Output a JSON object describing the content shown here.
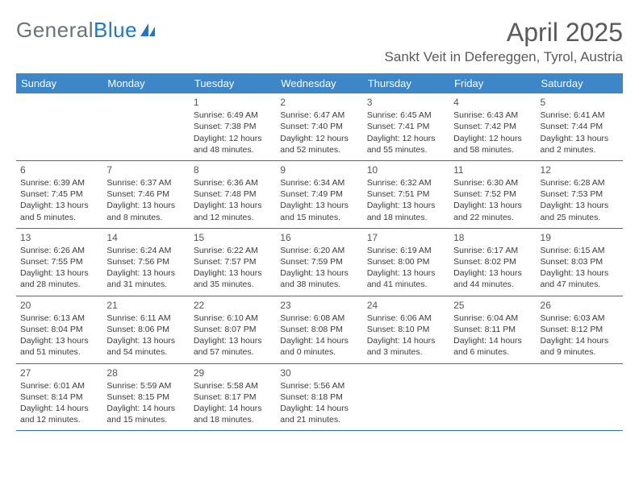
{
  "colors": {
    "header_blue": "#3d87c9",
    "rule_blue": "#2f6ea8",
    "logo_gray": "#6d7278",
    "logo_blue": "#1e78c8",
    "text": "#3b3b3b",
    "muted": "#5a5a5a",
    "background": "#ffffff"
  },
  "logo": {
    "part1": "General",
    "part2": "Blue"
  },
  "title": {
    "month": "April 2025",
    "location": "Sankt Veit in Defereggen, Tyrol, Austria"
  },
  "cols": [
    "Sunday",
    "Monday",
    "Tuesday",
    "Wednesday",
    "Thursday",
    "Friday",
    "Saturday"
  ],
  "weeks": [
    [
      null,
      null,
      {
        "n": "1",
        "sr": "6:49 AM",
        "ss": "7:38 PM",
        "dl": "12 hours and 48 minutes."
      },
      {
        "n": "2",
        "sr": "6:47 AM",
        "ss": "7:40 PM",
        "dl": "12 hours and 52 minutes."
      },
      {
        "n": "3",
        "sr": "6:45 AM",
        "ss": "7:41 PM",
        "dl": "12 hours and 55 minutes."
      },
      {
        "n": "4",
        "sr": "6:43 AM",
        "ss": "7:42 PM",
        "dl": "12 hours and 58 minutes."
      },
      {
        "n": "5",
        "sr": "6:41 AM",
        "ss": "7:44 PM",
        "dl": "13 hours and 2 minutes."
      }
    ],
    [
      {
        "n": "6",
        "sr": "6:39 AM",
        "ss": "7:45 PM",
        "dl": "13 hours and 5 minutes."
      },
      {
        "n": "7",
        "sr": "6:37 AM",
        "ss": "7:46 PM",
        "dl": "13 hours and 8 minutes."
      },
      {
        "n": "8",
        "sr": "6:36 AM",
        "ss": "7:48 PM",
        "dl": "13 hours and 12 minutes."
      },
      {
        "n": "9",
        "sr": "6:34 AM",
        "ss": "7:49 PM",
        "dl": "13 hours and 15 minutes."
      },
      {
        "n": "10",
        "sr": "6:32 AM",
        "ss": "7:51 PM",
        "dl": "13 hours and 18 minutes."
      },
      {
        "n": "11",
        "sr": "6:30 AM",
        "ss": "7:52 PM",
        "dl": "13 hours and 22 minutes."
      },
      {
        "n": "12",
        "sr": "6:28 AM",
        "ss": "7:53 PM",
        "dl": "13 hours and 25 minutes."
      }
    ],
    [
      {
        "n": "13",
        "sr": "6:26 AM",
        "ss": "7:55 PM",
        "dl": "13 hours and 28 minutes."
      },
      {
        "n": "14",
        "sr": "6:24 AM",
        "ss": "7:56 PM",
        "dl": "13 hours and 31 minutes."
      },
      {
        "n": "15",
        "sr": "6:22 AM",
        "ss": "7:57 PM",
        "dl": "13 hours and 35 minutes."
      },
      {
        "n": "16",
        "sr": "6:20 AM",
        "ss": "7:59 PM",
        "dl": "13 hours and 38 minutes."
      },
      {
        "n": "17",
        "sr": "6:19 AM",
        "ss": "8:00 PM",
        "dl": "13 hours and 41 minutes."
      },
      {
        "n": "18",
        "sr": "6:17 AM",
        "ss": "8:02 PM",
        "dl": "13 hours and 44 minutes."
      },
      {
        "n": "19",
        "sr": "6:15 AM",
        "ss": "8:03 PM",
        "dl": "13 hours and 47 minutes."
      }
    ],
    [
      {
        "n": "20",
        "sr": "6:13 AM",
        "ss": "8:04 PM",
        "dl": "13 hours and 51 minutes."
      },
      {
        "n": "21",
        "sr": "6:11 AM",
        "ss": "8:06 PM",
        "dl": "13 hours and 54 minutes."
      },
      {
        "n": "22",
        "sr": "6:10 AM",
        "ss": "8:07 PM",
        "dl": "13 hours and 57 minutes."
      },
      {
        "n": "23",
        "sr": "6:08 AM",
        "ss": "8:08 PM",
        "dl": "14 hours and 0 minutes."
      },
      {
        "n": "24",
        "sr": "6:06 AM",
        "ss": "8:10 PM",
        "dl": "14 hours and 3 minutes."
      },
      {
        "n": "25",
        "sr": "6:04 AM",
        "ss": "8:11 PM",
        "dl": "14 hours and 6 minutes."
      },
      {
        "n": "26",
        "sr": "6:03 AM",
        "ss": "8:12 PM",
        "dl": "14 hours and 9 minutes."
      }
    ],
    [
      {
        "n": "27",
        "sr": "6:01 AM",
        "ss": "8:14 PM",
        "dl": "14 hours and 12 minutes."
      },
      {
        "n": "28",
        "sr": "5:59 AM",
        "ss": "8:15 PM",
        "dl": "14 hours and 15 minutes."
      },
      {
        "n": "29",
        "sr": "5:58 AM",
        "ss": "8:17 PM",
        "dl": "14 hours and 18 minutes."
      },
      {
        "n": "30",
        "sr": "5:56 AM",
        "ss": "8:18 PM",
        "dl": "14 hours and 21 minutes."
      },
      null,
      null,
      null
    ]
  ],
  "labels": {
    "sunrise": "Sunrise: ",
    "sunset": "Sunset: ",
    "daylight": "Daylight: "
  }
}
